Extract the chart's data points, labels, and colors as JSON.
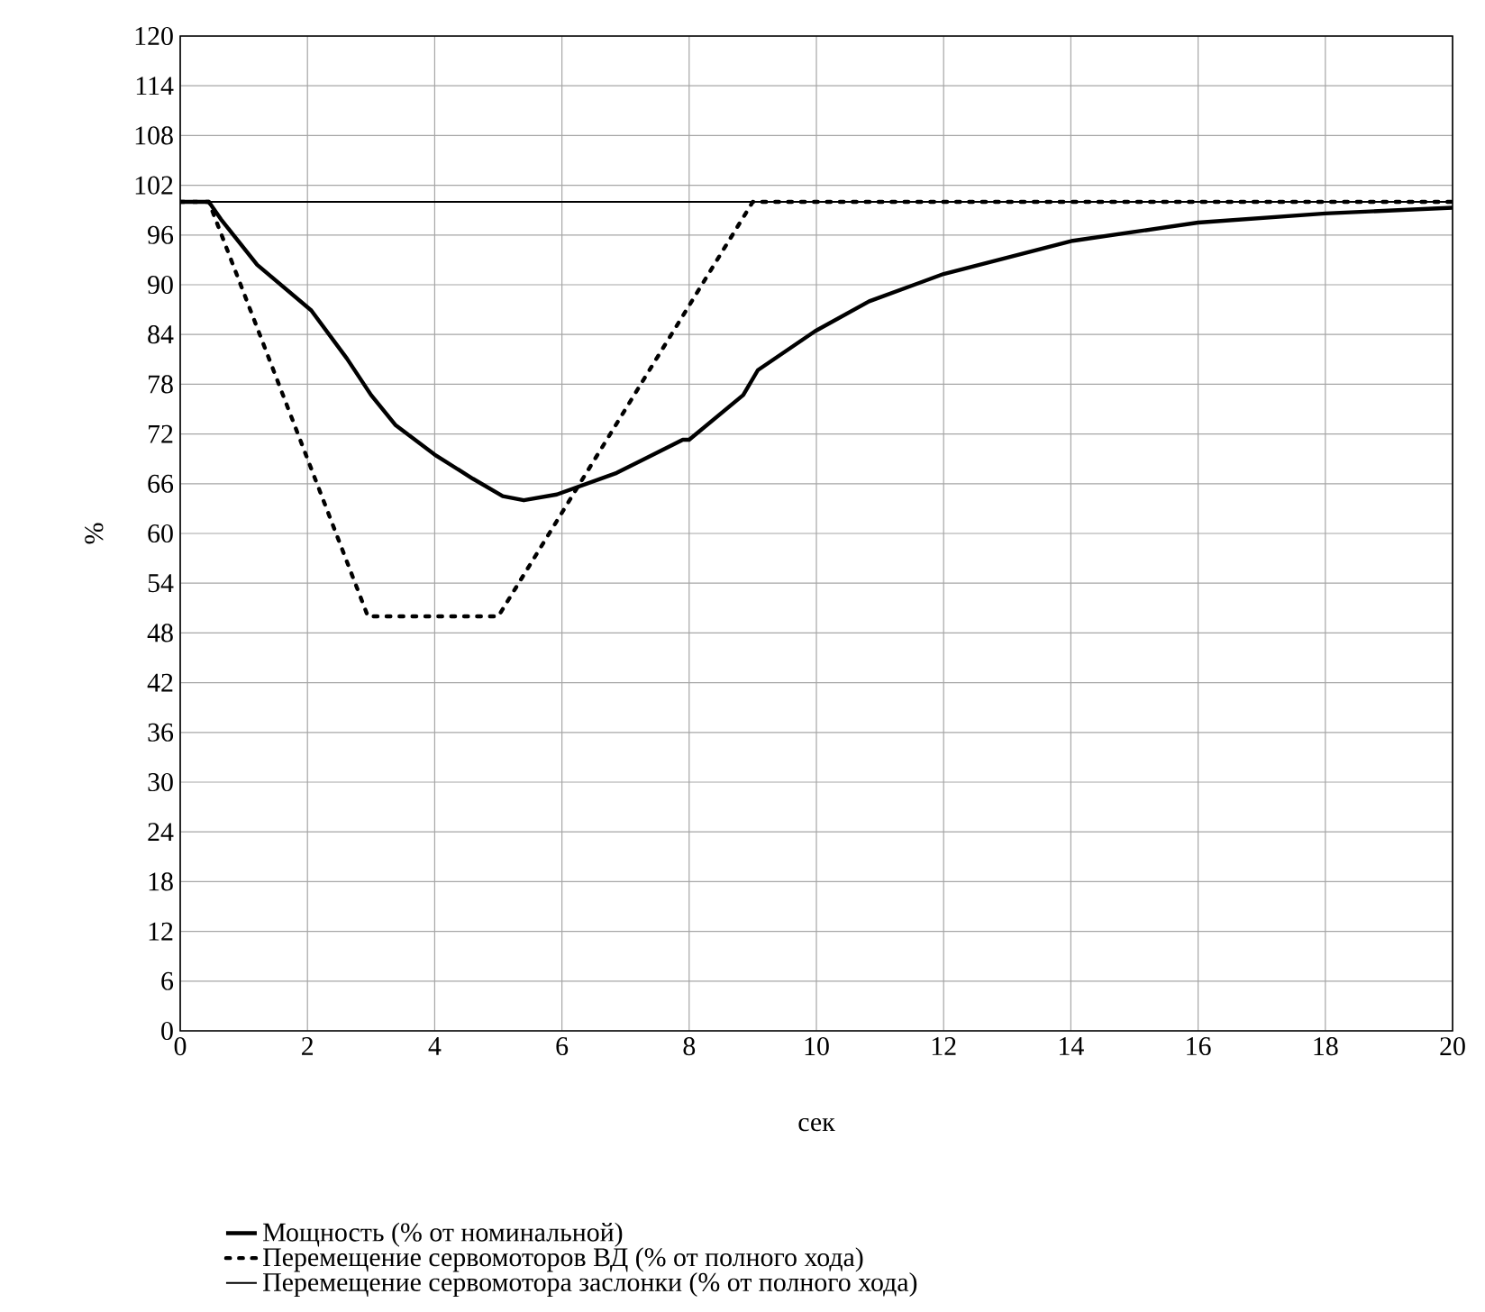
{
  "chart_data": {
    "type": "line",
    "xlabel": "сек",
    "ylabel": "%",
    "xlim": [
      0,
      20
    ],
    "ylim": [
      0,
      120
    ],
    "xticks": [
      0,
      2,
      4,
      6,
      8,
      10,
      12,
      14,
      16,
      18,
      20
    ],
    "yticks": [
      0,
      6,
      12,
      18,
      24,
      30,
      36,
      42,
      48,
      54,
      60,
      66,
      72,
      78,
      84,
      90,
      96,
      102,
      108,
      114,
      120
    ],
    "grid": true,
    "legend": "bottom",
    "marker": "none",
    "series": [
      {
        "name": "Мощность (% от номинальной)",
        "color": "#000000",
        "line_style": "solid",
        "x": [
          0,
          0.45,
          0.64,
          1.21,
          2.06,
          2.62,
          3.0,
          3.38,
          4.0,
          4.6,
          5.07,
          5.4,
          5.92,
          6.86,
          7.9,
          8.0,
          8.85,
          9.08,
          9.98,
          10.83,
          12.0,
          14.03,
          16.0,
          18.0,
          20.0
        ],
        "values": [
          100,
          100,
          97.9,
          92.4,
          86.9,
          81.1,
          76.7,
          73.1,
          69.5,
          66.6,
          64.5,
          64.0,
          64.7,
          67.3,
          71.3,
          71.3,
          76.7,
          79.7,
          84.4,
          88.0,
          91.3,
          95.3,
          97.5,
          98.6,
          99.3
        ]
      },
      {
        "name": "Перемещение сервомоторов  ВД (% от полного хода)",
        "color": "#000000",
        "line_style": "dotted",
        "x": [
          0,
          0.45,
          2.95,
          5.0,
          9.0,
          20.0
        ],
        "values": [
          100,
          100,
          50,
          50,
          100,
          100
        ]
      },
      {
        "name": "Перемещение сервомотора заслонки (% от полного хода)",
        "color": "#000000",
        "line_style": "solid",
        "x": [
          0,
          20
        ],
        "values": [
          100,
          100
        ]
      }
    ]
  }
}
